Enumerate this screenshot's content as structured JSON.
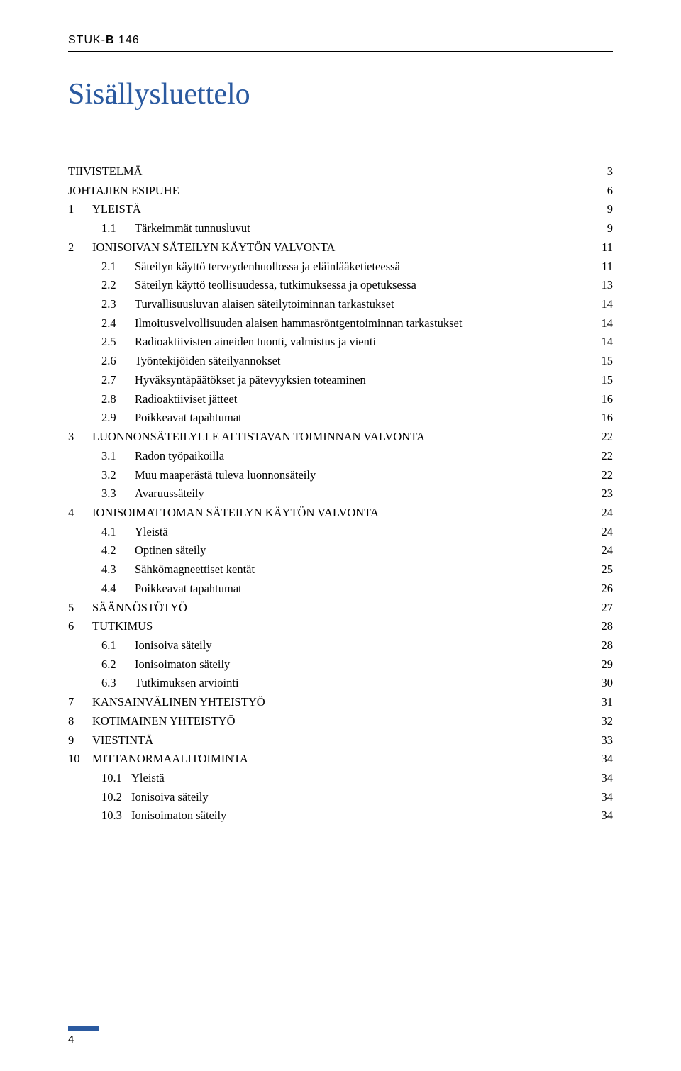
{
  "header": {
    "prefix": "STUK-",
    "bold": "B",
    "num": " 146"
  },
  "title": "Sisällysluettelo",
  "toc": [
    {
      "type": "chapter",
      "num": "",
      "label": "TIIVISTELMÄ",
      "page": "3"
    },
    {
      "type": "chapter",
      "num": "",
      "label": "JOHTAJIEN ESIPUHE",
      "page": "6"
    },
    {
      "type": "chapter",
      "num": "1",
      "label": "YLEISTÄ",
      "page": "9"
    },
    {
      "type": "sub",
      "num": "1.1",
      "label": "Tärkeimmät tunnusluvut",
      "page": "9"
    },
    {
      "type": "chapter",
      "num": "2",
      "label": "IONISOIVAN SÄTEILYN KÄYTÖN VALVONTA",
      "page": "11"
    },
    {
      "type": "sub",
      "num": "2.1",
      "label": "Säteilyn käyttö terveydenhuollossa ja eläinlääketieteessä",
      "page": "11"
    },
    {
      "type": "sub",
      "num": "2.2",
      "label": "Säteilyn käyttö teollisuudessa, tutkimuksessa ja opetuksessa",
      "page": "13"
    },
    {
      "type": "sub",
      "num": "2.3",
      "label": "Turvallisuusluvan alaisen säteilytoiminnan tarkastukset",
      "page": "14"
    },
    {
      "type": "sub",
      "num": "2.4",
      "label": "Ilmoitusvelvollisuuden alaisen hammasröntgentoiminnan tarkastukset",
      "page": "14"
    },
    {
      "type": "sub",
      "num": "2.5",
      "label": "Radioaktiivisten aineiden tuonti, valmistus ja vienti",
      "page": "14"
    },
    {
      "type": "sub",
      "num": "2.6",
      "label": "Työntekijöiden säteilyannokset",
      "page": "15"
    },
    {
      "type": "sub",
      "num": "2.7",
      "label": "Hyväksyntäpäätökset ja pätevyyksien toteaminen",
      "page": "15"
    },
    {
      "type": "sub",
      "num": "2.8",
      "label": "Radioaktiiviset jätteet",
      "page": "16"
    },
    {
      "type": "sub",
      "num": "2.9",
      "label": "Poikkeavat tapahtumat",
      "page": "16"
    },
    {
      "type": "chapter",
      "num": "3",
      "label": "LUONNONSÄTEILYLLE ALTISTAVAN TOIMINNAN VALVONTA",
      "page": "22"
    },
    {
      "type": "sub",
      "num": "3.1",
      "label": "Radon työpaikoilla",
      "page": "22"
    },
    {
      "type": "sub",
      "num": "3.2",
      "label": "Muu maaperästä tuleva luonnonsäteily",
      "page": "22"
    },
    {
      "type": "sub",
      "num": "3.3",
      "label": "Avaruussäteily",
      "page": "23"
    },
    {
      "type": "chapter",
      "num": "4",
      "label": "IONISOIMATTOMAN SÄTEILYN KÄYTÖN VALVONTA",
      "page": "24"
    },
    {
      "type": "sub",
      "num": "4.1",
      "label": "Yleistä",
      "page": "24"
    },
    {
      "type": "sub",
      "num": "4.2",
      "label": "Optinen säteily",
      "page": "24"
    },
    {
      "type": "sub",
      "num": "4.3",
      "label": "Sähkömagneettiset kentät",
      "page": "25"
    },
    {
      "type": "sub",
      "num": "4.4",
      "label": "Poikkeavat tapahtumat",
      "page": "26"
    },
    {
      "type": "chapter",
      "num": "5",
      "label": "SÄÄNNÖSTÖTYÖ",
      "page": "27"
    },
    {
      "type": "chapter",
      "num": "6",
      "label": "TUTKIMUS",
      "page": "28"
    },
    {
      "type": "sub",
      "num": "6.1",
      "label": "Ionisoiva säteily",
      "page": "28"
    },
    {
      "type": "sub",
      "num": "6.2",
      "label": "Ionisoimaton säteily",
      "page": "29"
    },
    {
      "type": "sub",
      "num": "6.3",
      "label": "Tutkimuksen arviointi",
      "page": "30"
    },
    {
      "type": "chapter",
      "num": "7",
      "label": "KANSAINVÄLINEN YHTEISTYÖ",
      "page": "31"
    },
    {
      "type": "chapter",
      "num": "8",
      "label": "KOTIMAINEN YHTEISTYÖ",
      "page": "32"
    },
    {
      "type": "chapter",
      "num": "9",
      "label": "VIESTINTÄ",
      "page": "33"
    },
    {
      "type": "chapter",
      "num": "10",
      "label": "MITTANORMAALITOIMINTA",
      "page": "34"
    },
    {
      "type": "sub",
      "num": "10.1",
      "label": "Yleistä",
      "page": "34",
      "nosp": true
    },
    {
      "type": "sub",
      "num": "10.2",
      "label": "Ionisoiva säteily",
      "page": "34",
      "nosp": true
    },
    {
      "type": "sub",
      "num": "10.3",
      "label": "Ionisoimaton säteily",
      "page": "34",
      "nosp": true
    }
  ],
  "footer": {
    "page": "4"
  },
  "style": {
    "title_color": "#2b5aa0",
    "rule_color": "#2b5aa0",
    "text_color": "#000000",
    "bg": "#ffffff",
    "title_fontsize": 42,
    "body_fontsize": 16.5
  }
}
